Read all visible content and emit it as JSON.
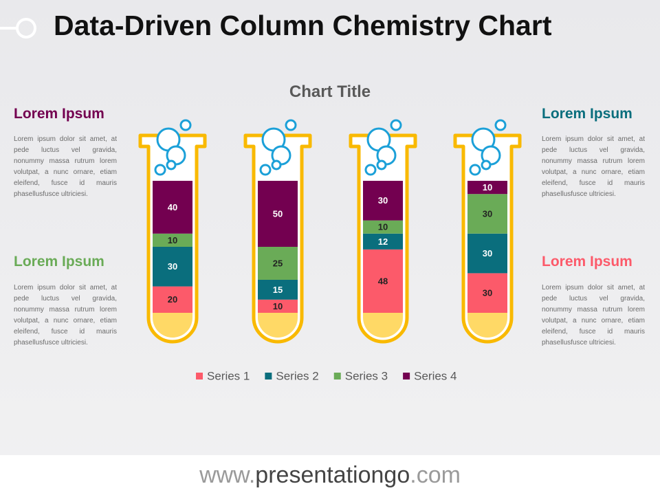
{
  "header": {
    "title": "Data-Driven Column Chemistry Chart"
  },
  "side_texts": [
    {
      "heading": "Lorem Ipsum",
      "text": "Lorem ipsum dolor sit amet, at pede luctus vel gravida, nonummy massa rutrum lorem volutpat, a nunc ornare, etiam eleifend, fusce id mauris phasellusfusce ultriciesi."
    },
    {
      "heading": "Lorem Ipsum",
      "text": "Lorem ipsum dolor sit amet, at pede luctus vel gravida, nonummy massa rutrum lorem volutpat, a nunc ornare, etiam eleifend, fusce id mauris phasellusfusce ultriciesi."
    },
    {
      "heading": "Lorem Ipsum",
      "text": "Lorem ipsum dolor sit amet, at pede luctus vel gravida, nonummy massa rutrum lorem volutpat, a nunc ornare, etiam eleifend, fusce id mauris phasellusfusce ultriciesi."
    },
    {
      "heading": "Lorem Ipsum",
      "text": "Lorem ipsum dolor sit amet, at pede luctus vel gravida, nonummy massa rutrum lorem volutpat, a nunc ornare, etiam eleifend, fusce id mauris phasellusfusce ultriciesi."
    }
  ],
  "footer": [
    "www.",
    "presentationgo",
    ".com"
  ],
  "chart_data": {
    "type": "stacked_bar",
    "title": "Chart Title",
    "categories": [
      null,
      null,
      null,
      null
    ],
    "series": [
      {
        "name": "Series 1",
        "color": "#fc5a6a",
        "values": [
          20,
          10,
          48,
          30
        ]
      },
      {
        "name": "Series 2",
        "color": "#0a6e7d",
        "values": [
          30,
          15,
          12,
          30
        ]
      },
      {
        "name": "Series 3",
        "color": "#6aab57",
        "values": [
          10,
          25,
          10,
          30
        ]
      },
      {
        "name": "Series 4",
        "color": "#730050",
        "values": [
          40,
          50,
          30,
          10
        ]
      }
    ],
    "ylim": [
      0,
      100
    ],
    "legend": "bottom"
  }
}
